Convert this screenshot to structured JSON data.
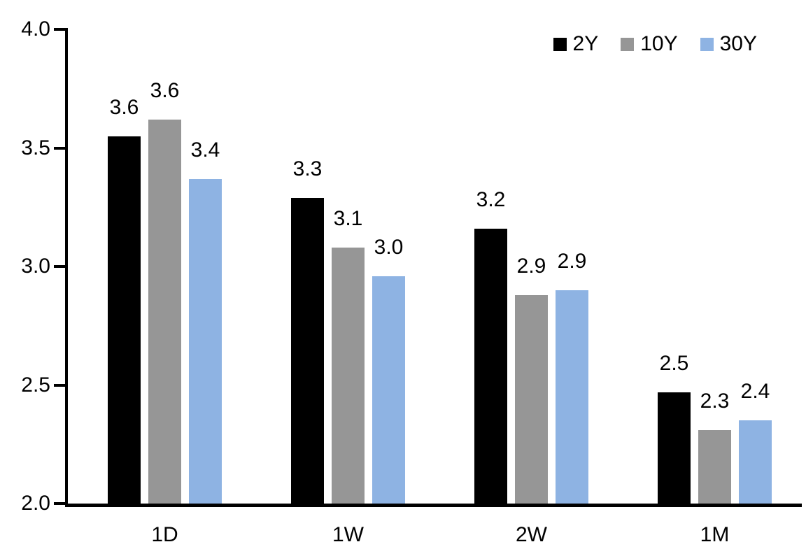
{
  "chart_data": {
    "type": "bar",
    "title": "",
    "xlabel": "",
    "ylabel": "",
    "categories": [
      "1D",
      "1W",
      "2W",
      "1M"
    ],
    "series": [
      {
        "name": "2Y",
        "color": "#000000",
        "values": [
          3.55,
          3.29,
          3.16,
          2.47
        ],
        "labels": [
          "3.6",
          "3.3",
          "3.2",
          "2.5"
        ]
      },
      {
        "name": "10Y",
        "color": "#969696",
        "values": [
          3.62,
          3.08,
          2.88,
          2.31
        ],
        "labels": [
          "3.6",
          "3.1",
          "2.9",
          "2.3"
        ]
      },
      {
        "name": "30Y",
        "color": "#8EB3E3",
        "values": [
          3.37,
          2.96,
          2.9,
          2.35
        ],
        "labels": [
          "3.4",
          "3.0",
          "2.9",
          "2.4"
        ]
      }
    ],
    "ylim": [
      2.0,
      4.0
    ],
    "yticks": [
      2.0,
      2.5,
      3.0,
      3.5,
      4.0
    ],
    "ytick_labels": [
      "2.0",
      "2.5",
      "3.0",
      "3.5",
      "4.0"
    ],
    "grid": false,
    "legend_position": "top-right",
    "axis_color": "#000000",
    "text_color": "#000000",
    "background_color": "#ffffff"
  }
}
